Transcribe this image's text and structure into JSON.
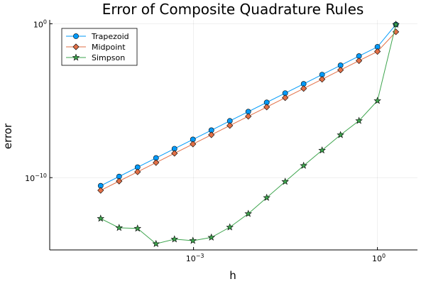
{
  "chart_data": {
    "type": "line",
    "title": "Error of Composite Quadrature Rules",
    "xlabel": "h",
    "ylabel": "error",
    "xscale": "log10",
    "yscale": "log10",
    "xlim": [
      4.5e-06,
      4.5
    ],
    "ylim": [
      2e-15,
      1.8
    ],
    "xticks": [
      {
        "value": 0.001,
        "base": "10",
        "exp": "−3"
      },
      {
        "value": 1,
        "base": "10",
        "exp": "0"
      }
    ],
    "yticks": [
      {
        "value": 1e-10,
        "base": "10",
        "exp": "−10"
      },
      {
        "value": 1,
        "base": "10",
        "exp": "0"
      }
    ],
    "grid": true,
    "legend_position": "top-left",
    "x": [
      3.0518e-05,
      6.1035e-05,
      0.00012207,
      0.00024414,
      0.00048828,
      0.00097656,
      0.0019531,
      0.0039063,
      0.0078125,
      0.015625,
      0.03125,
      0.0625,
      0.125,
      0.25,
      0.5,
      1.0,
      2.0
    ],
    "series": [
      {
        "name": "Trapezoid",
        "color": "#009af9",
        "marker": "circle",
        "values": [
          2.96e-11,
          1.18e-10,
          4.74e-10,
          1.89e-09,
          7.58e-09,
          3.03e-08,
          1.21e-07,
          4.85e-07,
          1.94e-06,
          7.76e-06,
          3.1e-05,
          0.000124,
          0.000497,
          0.00199,
          0.00794,
          0.0317,
          0.9
        ]
      },
      {
        "name": "Midpoint",
        "color": "#e26f46",
        "marker": "diamond",
        "values": [
          1.48e-11,
          5.92e-11,
          2.37e-10,
          9.47e-10,
          3.79e-09,
          1.52e-08,
          6.06e-08,
          2.43e-07,
          9.7e-07,
          3.88e-06,
          1.55e-05,
          6.2e-05,
          0.000248,
          0.000993,
          0.00397,
          0.0158,
          0.3
        ]
      },
      {
        "name": "Simpson",
        "color": "#3da44d",
        "marker": "star",
        "values": [
          2.2e-13,
          5.5e-14,
          5e-14,
          5e-15,
          1e-14,
          8e-15,
          1.3e-14,
          6e-14,
          4.5e-13,
          5e-12,
          5.5e-11,
          6e-10,
          6e-09,
          6e-08,
          5e-07,
          1e-05,
          0.9
        ]
      }
    ]
  }
}
